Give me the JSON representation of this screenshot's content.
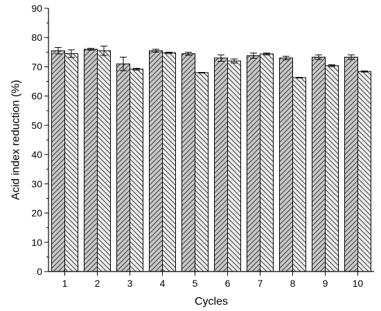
{
  "chart_data": {
    "type": "bar",
    "title": "",
    "xlabel": "Cycles",
    "ylabel": "Acid index reduction (%)",
    "categories": [
      "1",
      "2",
      "3",
      "4",
      "5",
      "6",
      "7",
      "8",
      "9",
      "10"
    ],
    "ylim": [
      0,
      90
    ],
    "yticks": [
      "0",
      "10",
      "20",
      "30",
      "40",
      "50",
      "60",
      "70",
      "80",
      "90"
    ],
    "grid": false,
    "legend": "none",
    "series": [
      {
        "values": [
          75.5,
          76.0,
          71.0,
          75.5,
          74.5,
          73.0,
          73.8,
          73.0,
          73.3,
          73.3
        ],
        "errors": [
          1.1,
          0.3,
          2.3,
          0.5,
          0.5,
          1.1,
          0.9,
          0.6,
          0.8,
          0.8
        ],
        "fill": "#c8c8c8",
        "hatch": "forward-diagonal"
      },
      {
        "values": [
          74.5,
          75.5,
          69.2,
          74.8,
          68.0,
          72.0,
          74.4,
          66.3,
          70.4,
          68.4
        ],
        "errors": [
          1.3,
          1.6,
          0.3,
          0.2,
          0.1,
          0.7,
          0.3,
          0.1,
          0.3,
          0.2
        ],
        "fill": "#ececec",
        "hatch": "backward-diagonal"
      }
    ]
  }
}
